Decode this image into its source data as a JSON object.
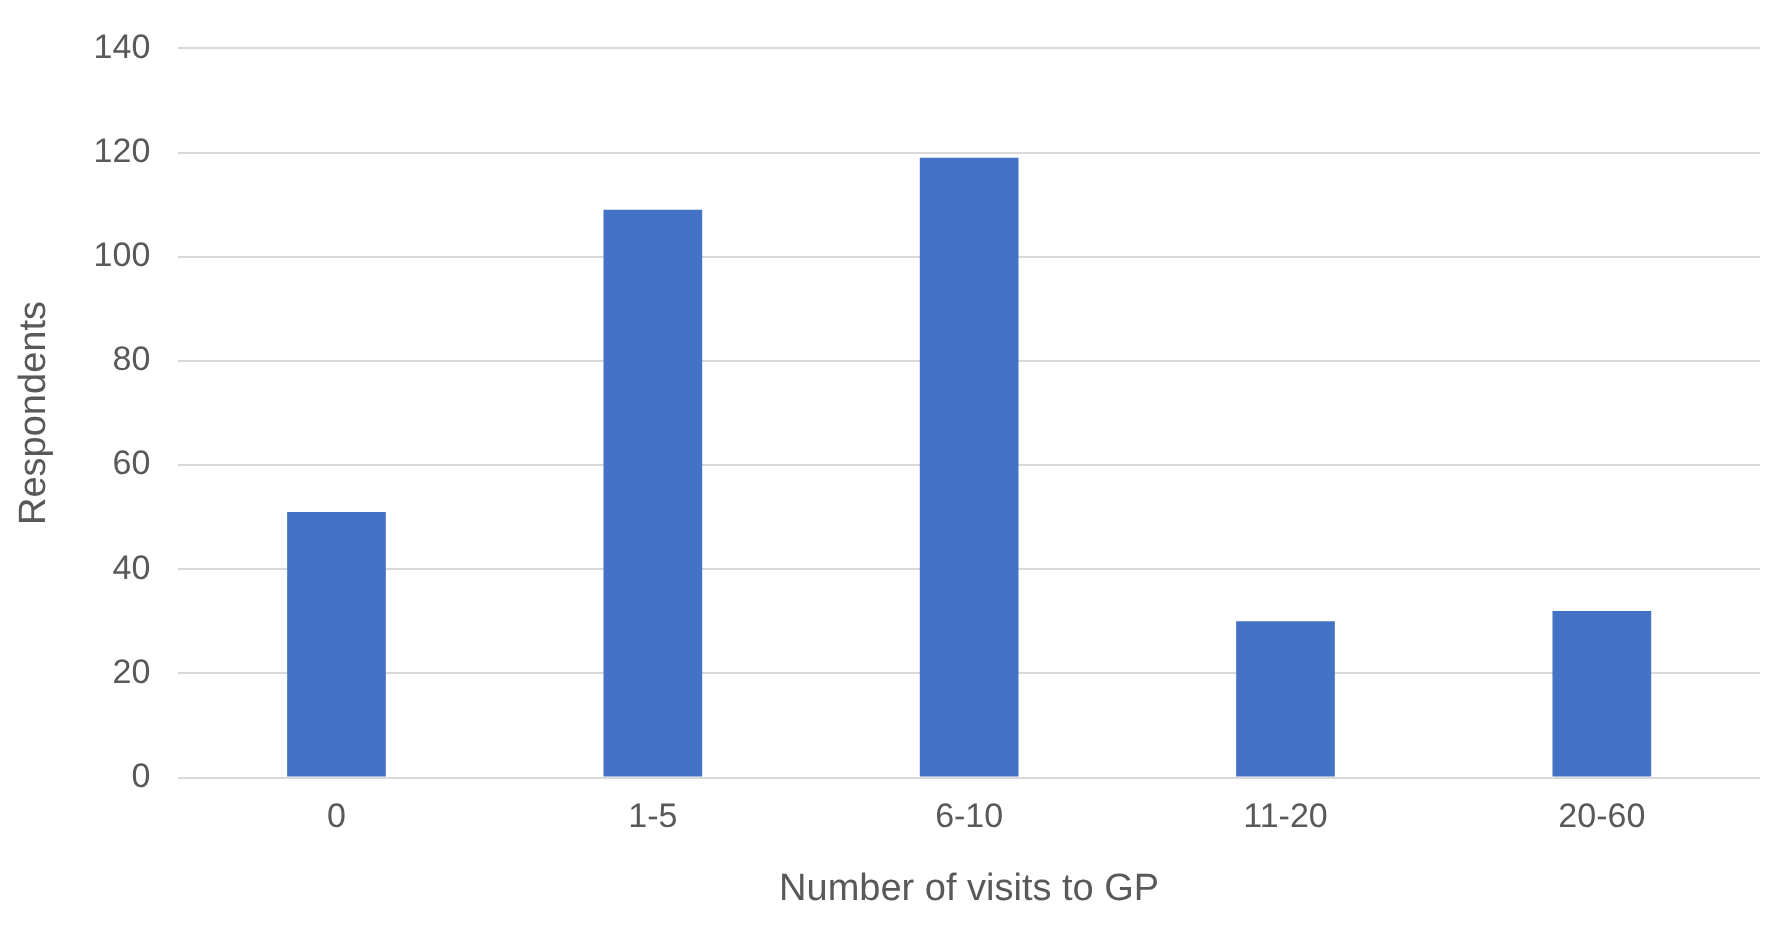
{
  "chart_data": {
    "type": "bar",
    "xlabel": "Number of visits to GP",
    "ylabel": "Respondents",
    "categories": [
      "0",
      "1-5",
      "6-10",
      "11-20",
      "20-60"
    ],
    "values": [
      51,
      109,
      119,
      30,
      32
    ],
    "color": "#4472c4",
    "ylim": [
      0,
      140
    ],
    "yticks": [
      0,
      20,
      40,
      60,
      80,
      100,
      120,
      140
    ],
    "grid": "y",
    "legend": false
  }
}
